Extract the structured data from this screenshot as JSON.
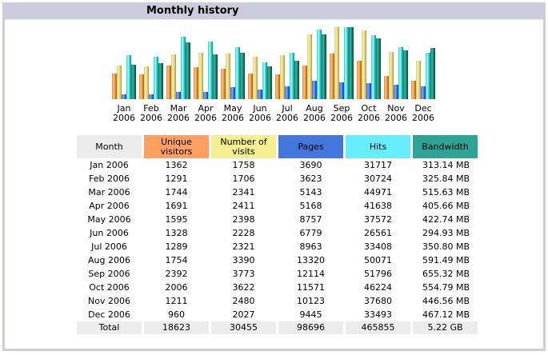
{
  "panel": {
    "title": "Monthly history"
  },
  "colors": {
    "unique_visitors": "#FFA060",
    "visits": "#F4F090",
    "pages": "#4477DD",
    "hits": "#66EEFF",
    "bandwidth": "#2EA495",
    "frame": "#CCCCDD",
    "total_row": "#ECECEC"
  },
  "table": {
    "headers": {
      "month": "Month",
      "unique_visitors": "Unique visitors",
      "visits": "Number of visits",
      "pages": "Pages",
      "hits": "Hits",
      "bandwidth": "Bandwidth"
    },
    "rows": [
      {
        "month": "Jan 2006",
        "unique": "1362",
        "visits": "1758",
        "pages": "3690",
        "hits": "31717",
        "bandwidth": "313.14 MB"
      },
      {
        "month": "Feb 2006",
        "unique": "1291",
        "visits": "1706",
        "pages": "3623",
        "hits": "30724",
        "bandwidth": "325.84 MB"
      },
      {
        "month": "Mar 2006",
        "unique": "1744",
        "visits": "2341",
        "pages": "5143",
        "hits": "44971",
        "bandwidth": "515.63 MB"
      },
      {
        "month": "Apr 2006",
        "unique": "1691",
        "visits": "2411",
        "pages": "5168",
        "hits": "41638",
        "bandwidth": "405.66 MB"
      },
      {
        "month": "May 2006",
        "unique": "1595",
        "visits": "2398",
        "pages": "8757",
        "hits": "37572",
        "bandwidth": "422.74 MB"
      },
      {
        "month": "Jun 2006",
        "unique": "1328",
        "visits": "2228",
        "pages": "6779",
        "hits": "26561",
        "bandwidth": "294.93 MB"
      },
      {
        "month": "Jul 2006",
        "unique": "1289",
        "visits": "2321",
        "pages": "8963",
        "hits": "33408",
        "bandwidth": "350.80 MB"
      },
      {
        "month": "Aug 2006",
        "unique": "1754",
        "visits": "3390",
        "pages": "13320",
        "hits": "50071",
        "bandwidth": "591.49 MB"
      },
      {
        "month": "Sep 2006",
        "unique": "2392",
        "visits": "3773",
        "pages": "12114",
        "hits": "51796",
        "bandwidth": "655.32 MB"
      },
      {
        "month": "Oct 2006",
        "unique": "2006",
        "visits": "3622",
        "pages": "11571",
        "hits": "46224",
        "bandwidth": "554.79 MB"
      },
      {
        "month": "Nov 2006",
        "unique": "1211",
        "visits": "2480",
        "pages": "10123",
        "hits": "37680",
        "bandwidth": "446.56 MB"
      },
      {
        "month": "Dec 2006",
        "unique": "960",
        "visits": "2027",
        "pages": "9445",
        "hits": "33493",
        "bandwidth": "467.12 MB"
      }
    ],
    "total": {
      "month": "Total",
      "unique": "18623",
      "visits": "30455",
      "pages": "98696",
      "hits": "465855",
      "bandwidth": "5.22 GB"
    }
  },
  "chart_data": {
    "type": "bar",
    "title": "Monthly history",
    "xlabel": "",
    "ylabel": "",
    "grid": false,
    "legend": "none (column headers act as legend)",
    "categories": [
      "Jan 2006",
      "Feb 2006",
      "Mar 2006",
      "Apr 2006",
      "May 2006",
      "Jun 2006",
      "Jul 2006",
      "Aug 2006",
      "Sep 2006",
      "Oct 2006",
      "Nov 2006",
      "Dec 2006"
    ],
    "category_labels": [
      [
        "Jan",
        "2006"
      ],
      [
        "Feb",
        "2006"
      ],
      [
        "Mar",
        "2006"
      ],
      [
        "Apr",
        "2006"
      ],
      [
        "May",
        "2006"
      ],
      [
        "Jun",
        "2006"
      ],
      [
        "Jul",
        "2006"
      ],
      [
        "Aug",
        "2006"
      ],
      [
        "Sep",
        "2006"
      ],
      [
        "Oct",
        "2006"
      ],
      [
        "Nov",
        "2006"
      ],
      [
        "Dec",
        "2006"
      ]
    ],
    "scale_note": "visitors and visits share one scale; pages and hits share one scale; bandwidth own scale",
    "series": [
      {
        "name": "Unique visitors",
        "key": "unique_visitors",
        "scale_group": "visits",
        "values": [
          1362,
          1291,
          1744,
          1691,
          1595,
          1328,
          1289,
          1754,
          2392,
          2006,
          1211,
          960
        ]
      },
      {
        "name": "Number of visits",
        "key": "visits",
        "scale_group": "visits",
        "values": [
          1758,
          1706,
          2341,
          2411,
          2398,
          2228,
          2321,
          3390,
          3773,
          3622,
          2480,
          2027
        ]
      },
      {
        "name": "Pages",
        "key": "pages",
        "scale_group": "hits",
        "values": [
          3690,
          3623,
          5143,
          5168,
          8757,
          6779,
          8963,
          13320,
          12114,
          11571,
          10123,
          9445
        ]
      },
      {
        "name": "Hits",
        "key": "hits",
        "scale_group": "hits",
        "values": [
          31717,
          30724,
          44971,
          41638,
          37572,
          26561,
          33408,
          50071,
          51796,
          46224,
          37680,
          33493
        ]
      },
      {
        "name": "Bandwidth (MB)",
        "key": "bandwidth",
        "scale_group": "bandwidth",
        "values": [
          313.14,
          325.84,
          515.63,
          405.66,
          422.74,
          294.93,
          350.8,
          591.49,
          655.32,
          554.79,
          446.56,
          467.12
        ]
      }
    ]
  }
}
